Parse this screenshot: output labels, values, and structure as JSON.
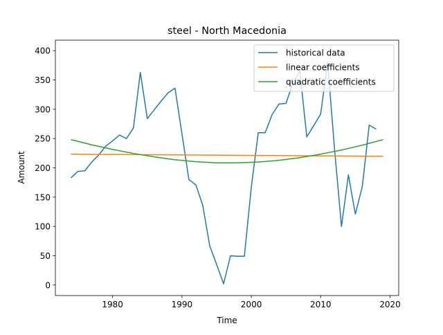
{
  "chart_data": {
    "type": "line",
    "title": "steel - North Macedonia",
    "xlabel": "Time",
    "ylabel": "Amount",
    "xlim": [
      1971.75,
      2021.25
    ],
    "ylim": [
      -18,
      418
    ],
    "xticks": [
      1980,
      1990,
      2000,
      2010,
      2020
    ],
    "yticks": [
      0,
      50,
      100,
      150,
      200,
      250,
      300,
      350,
      400
    ],
    "legend_position": "upper right",
    "grid": false,
    "series": [
      {
        "name": "historical data",
        "color": "#1f77b4",
        "x": [
          1974,
          1975,
          1976,
          1977,
          1978,
          1979,
          1980,
          1981,
          1982,
          1983,
          1984,
          1985,
          1986,
          1987,
          1988,
          1989,
          1990,
          1991,
          1992,
          1993,
          1994,
          1995,
          1996,
          1997,
          1998,
          1999,
          2000,
          2001,
          2002,
          2003,
          2004,
          2005,
          2006,
          2007,
          2008,
          2009,
          2010,
          2011,
          2012,
          2013,
          2014,
          2015,
          2016,
          2017,
          2018
        ],
        "values": [
          183,
          194,
          195,
          210,
          222,
          237,
          246,
          256,
          250,
          268,
          363,
          284,
          299,
          314,
          328,
          336,
          258,
          180,
          171,
          136,
          67,
          35,
          2,
          50,
          49,
          49,
          167,
          260,
          260,
          291,
          309,
          310,
          345,
          365,
          253,
          272,
          292,
          380,
          232,
          100,
          188,
          121,
          168,
          273,
          266
        ]
      },
      {
        "name": "linear coefficients",
        "color": "#ff7f0e",
        "x": [
          1974,
          1979,
          1984,
          1989,
          1994,
          1999,
          2004,
          2009,
          2014,
          2019
        ],
        "values": [
          223.3,
          222.9,
          222.5,
          222.1,
          221.7,
          221.3,
          220.9,
          220.5,
          220.1,
          219.7
        ]
      },
      {
        "name": "quadratic coefficients",
        "color": "#2ca02c",
        "x": [
          1974,
          1977,
          1980,
          1983,
          1986,
          1989,
          1992,
          1995,
          1998,
          2001,
          2004,
          2007,
          2010,
          2013,
          2016,
          2019
        ],
        "values": [
          248.2,
          239.3,
          231.5,
          224.6,
          218.7,
          213.8,
          210.5,
          208.6,
          208.5,
          209.9,
          212.9,
          217.4,
          223.4,
          230.4,
          238.7,
          248.2
        ]
      }
    ]
  }
}
